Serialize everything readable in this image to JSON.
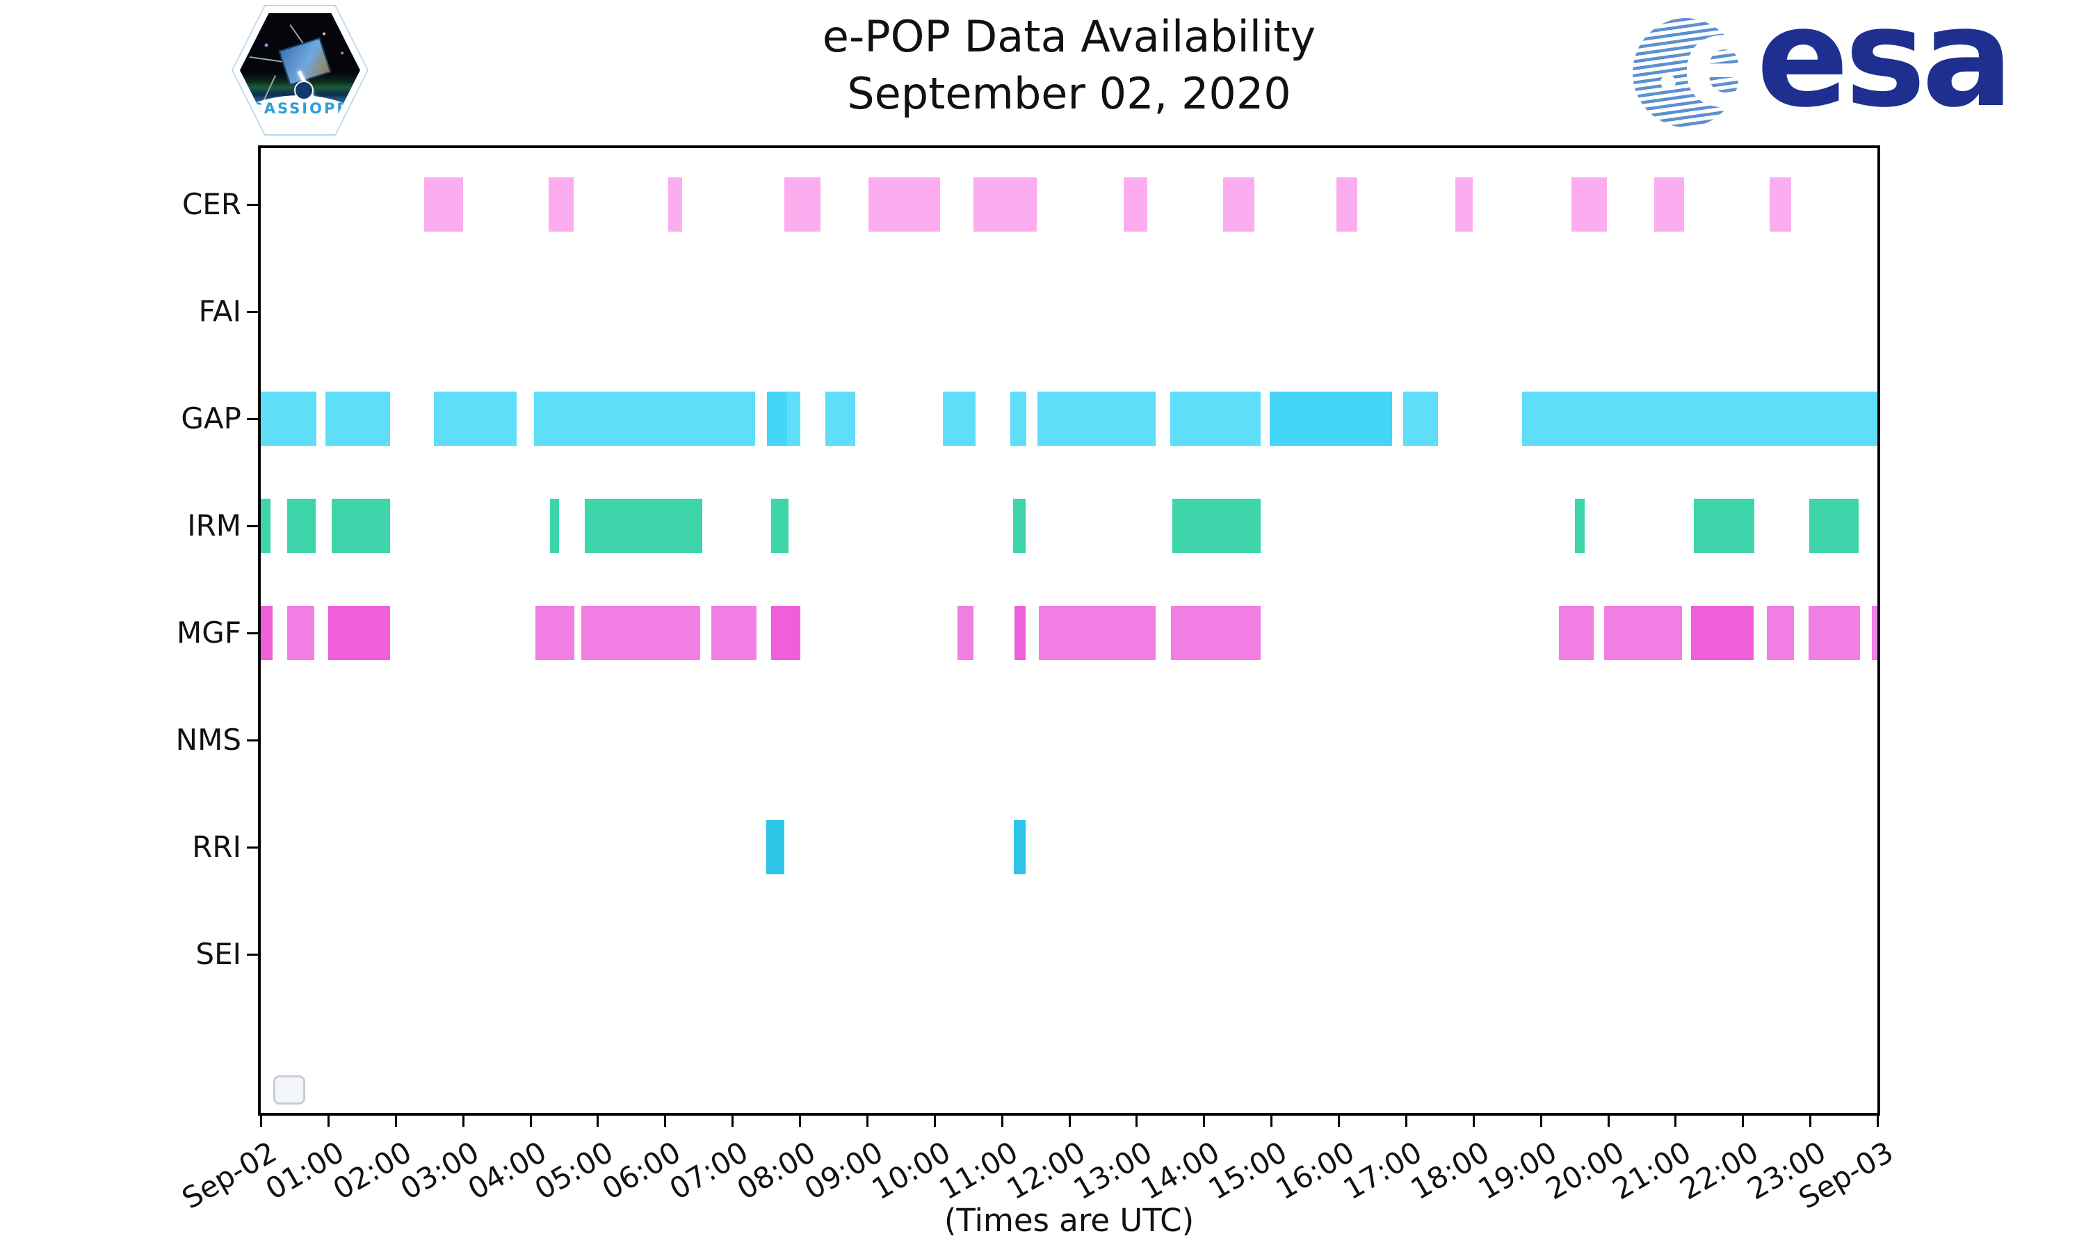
{
  "header": {
    "title_line1": "e-POP Data Availability",
    "title_line2": "September 02, 2020",
    "cassiope_patch_label": "CASSIOPE",
    "esa_letter": "e",
    "esa_wordmark": "esa"
  },
  "footer": {
    "caption": "(Times are UTC)"
  },
  "chart_data": {
    "type": "availability-gantt",
    "title": "e-POP Data Availability",
    "subtitle": "September 02, 2020",
    "xlabel": "(Times are UTC)",
    "xlim_hours": [
      0,
      24
    ],
    "grid": false,
    "x_tick_labels": [
      "Sep-02",
      "01:00",
      "02:00",
      "03:00",
      "04:00",
      "05:00",
      "06:00",
      "07:00",
      "08:00",
      "09:00",
      "10:00",
      "11:00",
      "12:00",
      "13:00",
      "14:00",
      "15:00",
      "16:00",
      "17:00",
      "18:00",
      "19:00",
      "20:00",
      "21:00",
      "22:00",
      "23:00",
      "Sep-03"
    ],
    "y_categories": [
      "CER",
      "FAI",
      "GAP",
      "IRM",
      "MGF",
      "NMS",
      "RRI",
      "SEI"
    ],
    "colors": {
      "CER": "#fbadf0",
      "GAP": "#5fdefa",
      "GAP_dark": "#45d6f7",
      "IRM": "#3dd5a9",
      "MGF": "#f27fe3",
      "MGF_dark": "#ee5fd9",
      "RRI": "#2ec6e8"
    },
    "rows": [
      {
        "label": "CER",
        "bars": [
          [
            2.43,
            3.0
          ],
          [
            4.27,
            4.64
          ],
          [
            6.05,
            6.26
          ],
          [
            7.77,
            8.31
          ],
          [
            9.02,
            10.08
          ],
          [
            10.58,
            11.52
          ],
          [
            12.81,
            13.16
          ],
          [
            14.29,
            14.75
          ],
          [
            15.97,
            16.28
          ],
          [
            17.73,
            17.99
          ],
          [
            19.46,
            19.98
          ],
          [
            20.69,
            21.13
          ],
          [
            22.4,
            22.72
          ]
        ]
      },
      {
        "label": "FAI",
        "bars": []
      },
      {
        "label": "GAP",
        "bars": [
          [
            0,
            0.83
          ],
          [
            0.96,
            1.92
          ],
          [
            2.57,
            3.8
          ],
          [
            4.06,
            7.34
          ],
          [
            7.51,
            7.81,
            "dark"
          ],
          [
            7.81,
            8.01
          ],
          [
            8.38,
            8.83
          ],
          [
            10.13,
            10.61
          ],
          [
            11.13,
            11.36
          ],
          [
            11.53,
            13.29
          ],
          [
            13.5,
            14.84
          ],
          [
            14.98,
            16.79,
            "dark"
          ],
          [
            16.96,
            17.48
          ],
          [
            18.72,
            24.0
          ]
        ]
      },
      {
        "label": "IRM",
        "bars": [
          [
            0,
            0.14
          ],
          [
            0.39,
            0.82
          ],
          [
            1.05,
            1.92
          ],
          [
            4.29,
            4.43
          ],
          [
            4.81,
            6.55
          ],
          [
            7.58,
            7.83
          ],
          [
            11.17,
            11.35
          ],
          [
            13.53,
            14.84
          ],
          [
            19.51,
            19.65
          ],
          [
            21.27,
            22.17
          ],
          [
            22.99,
            23.72
          ]
        ]
      },
      {
        "label": "MGF",
        "bars": [
          [
            0,
            0.18,
            "dark"
          ],
          [
            0.39,
            0.79
          ],
          [
            1.0,
            1.92,
            "dark"
          ],
          [
            4.08,
            4.66
          ],
          [
            4.76,
            6.52
          ],
          [
            6.69,
            7.36
          ],
          [
            7.58,
            8.01,
            "dark"
          ],
          [
            10.34,
            10.58
          ],
          [
            11.19,
            11.35,
            "dark"
          ],
          [
            11.55,
            13.29
          ],
          [
            13.51,
            14.84
          ],
          [
            19.27,
            19.79
          ],
          [
            19.94,
            21.1
          ],
          [
            21.23,
            22.16,
            "dark"
          ],
          [
            22.36,
            22.76
          ],
          [
            22.98,
            23.74
          ],
          [
            23.92,
            24.0
          ]
        ]
      },
      {
        "label": "NMS",
        "bars": []
      },
      {
        "label": "RRI",
        "bars": [
          [
            7.5,
            7.77
          ],
          [
            11.18,
            11.35
          ]
        ]
      },
      {
        "label": "SEI",
        "bars": []
      }
    ]
  }
}
